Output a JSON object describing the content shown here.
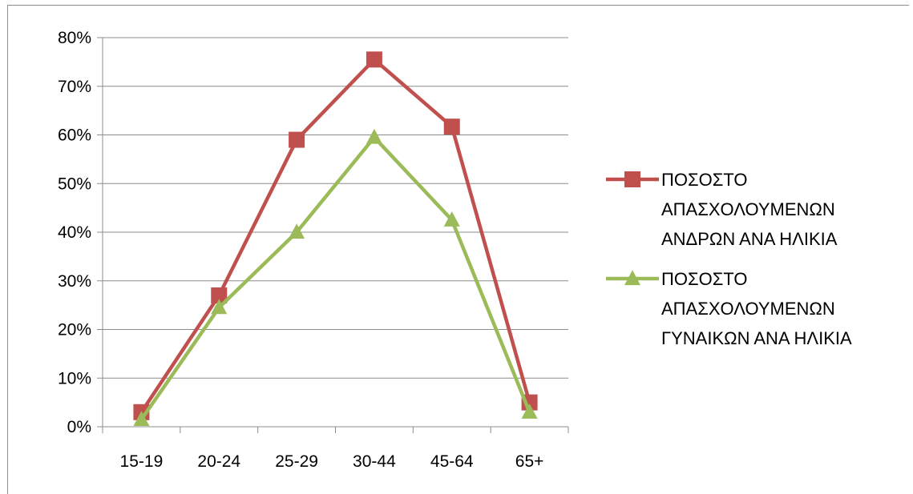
{
  "chart_data": {
    "type": "line",
    "title": "",
    "xlabel": "",
    "ylabel": "",
    "categories": [
      "15-19",
      "20-24",
      "25-29",
      "30-44",
      "45-64",
      "65+"
    ],
    "ylim": [
      0,
      0.8
    ],
    "y_ticks": [
      0,
      0.1,
      0.2,
      0.3,
      0.4,
      0.5,
      0.6,
      0.7,
      0.8
    ],
    "y_tick_labels": [
      "0%",
      "10%",
      "20%",
      "30%",
      "40%",
      "50%",
      "60%",
      "70%",
      "80%"
    ],
    "grid": true,
    "legend_position": "right",
    "series": [
      {
        "name_lines": [
          "ΠΟΣΟΣΤΟ",
          "ΑΠΑΣΧΟΛΟΥΜΕΝΩΝ",
          "ΑΝΔΡΩΝ ΑΝΑ ΗΛΙΚΙΑ"
        ],
        "values": [
          0.03,
          0.27,
          0.59,
          0.755,
          0.617,
          0.05
        ],
        "color": "#c0504d",
        "marker": "square"
      },
      {
        "name_lines": [
          "ΠΟΣΟΣΤΟ",
          "ΑΠΑΣΧΟΛΟΥΜΕΝΩΝ",
          "ΓΥΝΑΙΚΩΝ ΑΝΑ ΗΛΙΚΙΑ"
        ],
        "values": [
          0.015,
          0.245,
          0.4,
          0.595,
          0.425,
          0.03
        ],
        "color": "#9bbb59",
        "marker": "triangle"
      }
    ]
  }
}
